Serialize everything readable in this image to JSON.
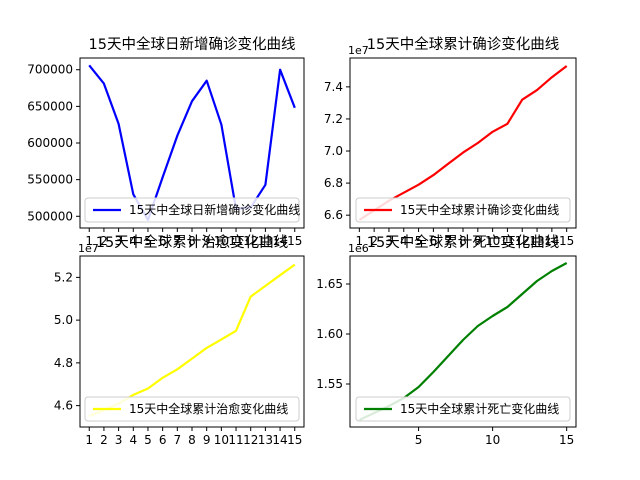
{
  "chart_data": [
    {
      "type": "line",
      "title": "15天中全球日新增确诊变化曲线",
      "x": [
        1,
        2,
        3,
        4,
        5,
        6,
        7,
        8,
        9,
        10,
        11,
        12,
        13,
        14,
        15
      ],
      "series": [
        {
          "name": "15天中全球日新增确诊变化曲线",
          "color": "#0000ff",
          "values": [
            706000,
            681000,
            626000,
            530000,
            495000,
            553000,
            610000,
            657000,
            685000,
            625000,
            510000,
            512000,
            543000,
            700000,
            648000
          ]
        }
      ],
      "xticks": [
        "1",
        "2",
        "3",
        "4",
        "5",
        "6",
        "7",
        "8",
        "9",
        "10",
        "11",
        "12",
        "13",
        "14",
        "15"
      ],
      "yticks": [
        500000,
        550000,
        600000,
        650000,
        700000
      ],
      "yticklabels": [
        "500000",
        "550000",
        "600000",
        "650000",
        "700000"
      ],
      "ylim": [
        484000,
        716000
      ],
      "offset_label": "",
      "legend_loc": "lower-center"
    },
    {
      "type": "line",
      "title": "15天中全球累计确诊变化曲线",
      "x": [
        1,
        2,
        3,
        4,
        5,
        6,
        7,
        8,
        9,
        10,
        11,
        12,
        13,
        14,
        15
      ],
      "series": [
        {
          "name": "15天中全球累计确诊变化曲线",
          "color": "#ff0000",
          "values": [
            6.57,
            6.63,
            6.69,
            6.74,
            6.79,
            6.85,
            6.92,
            6.99,
            7.05,
            7.12,
            7.17,
            7.32,
            7.38,
            7.46,
            7.53
          ]
        }
      ],
      "xticks": [
        "1",
        "2",
        "3",
        "4",
        "5",
        "6",
        "7",
        "8",
        "9",
        "10",
        "11",
        "12",
        "13",
        "14",
        "15"
      ],
      "yticks": [
        6.6,
        6.8,
        7.0,
        7.2,
        7.4
      ],
      "yticklabels": [
        "6.6",
        "6.8",
        "7.0",
        "7.2",
        "7.4"
      ],
      "ylim": [
        6.52,
        7.58
      ],
      "offset_label": "1e7",
      "legend_loc": "lower-center"
    },
    {
      "type": "line",
      "title": "15天中全球累计治愈变化曲线",
      "x": [
        1,
        2,
        3,
        4,
        5,
        6,
        7,
        8,
        9,
        10,
        11,
        12,
        13,
        14,
        15
      ],
      "series": [
        {
          "name": "15天中全球累计治愈变化曲线",
          "color": "#ffff00",
          "values": [
            4.55,
            4.58,
            4.61,
            4.65,
            4.68,
            4.73,
            4.77,
            4.82,
            4.87,
            4.91,
            4.95,
            5.11,
            5.16,
            5.21,
            5.26
          ]
        }
      ],
      "xticks": [
        "1",
        "2",
        "3",
        "4",
        "5",
        "6",
        "7",
        "8",
        "9",
        "10",
        "11",
        "12",
        "13",
        "14",
        "15"
      ],
      "yticks": [
        4.6,
        4.8,
        5.0,
        5.2
      ],
      "yticklabels": [
        "4.6",
        "4.8",
        "5.0",
        "5.2"
      ],
      "ylim": [
        4.5,
        5.3
      ],
      "offset_label": "1e7",
      "legend_loc": "lower-center"
    },
    {
      "type": "line",
      "title": "15天中全球累计死亡变化曲线",
      "x": [
        1,
        2,
        3,
        4,
        5,
        6,
        7,
        8,
        9,
        10,
        11,
        12,
        13,
        14,
        15
      ],
      "series": [
        {
          "name": "15天中全球累计死亡变化曲线",
          "color": "#008000",
          "values": [
            1.514,
            1.521,
            1.528,
            1.536,
            1.547,
            1.562,
            1.578,
            1.594,
            1.608,
            1.618,
            1.627,
            1.64,
            1.653,
            1.663,
            1.671
          ]
        }
      ],
      "xticks": [
        "5",
        "10",
        "15"
      ],
      "yticks": [
        1.55,
        1.6,
        1.65
      ],
      "yticklabels": [
        "1.55",
        "1.60",
        "1.65"
      ],
      "ylim": [
        1.507,
        1.678
      ],
      "offset_label": "1e6",
      "legend_loc": "lower-center"
    }
  ]
}
